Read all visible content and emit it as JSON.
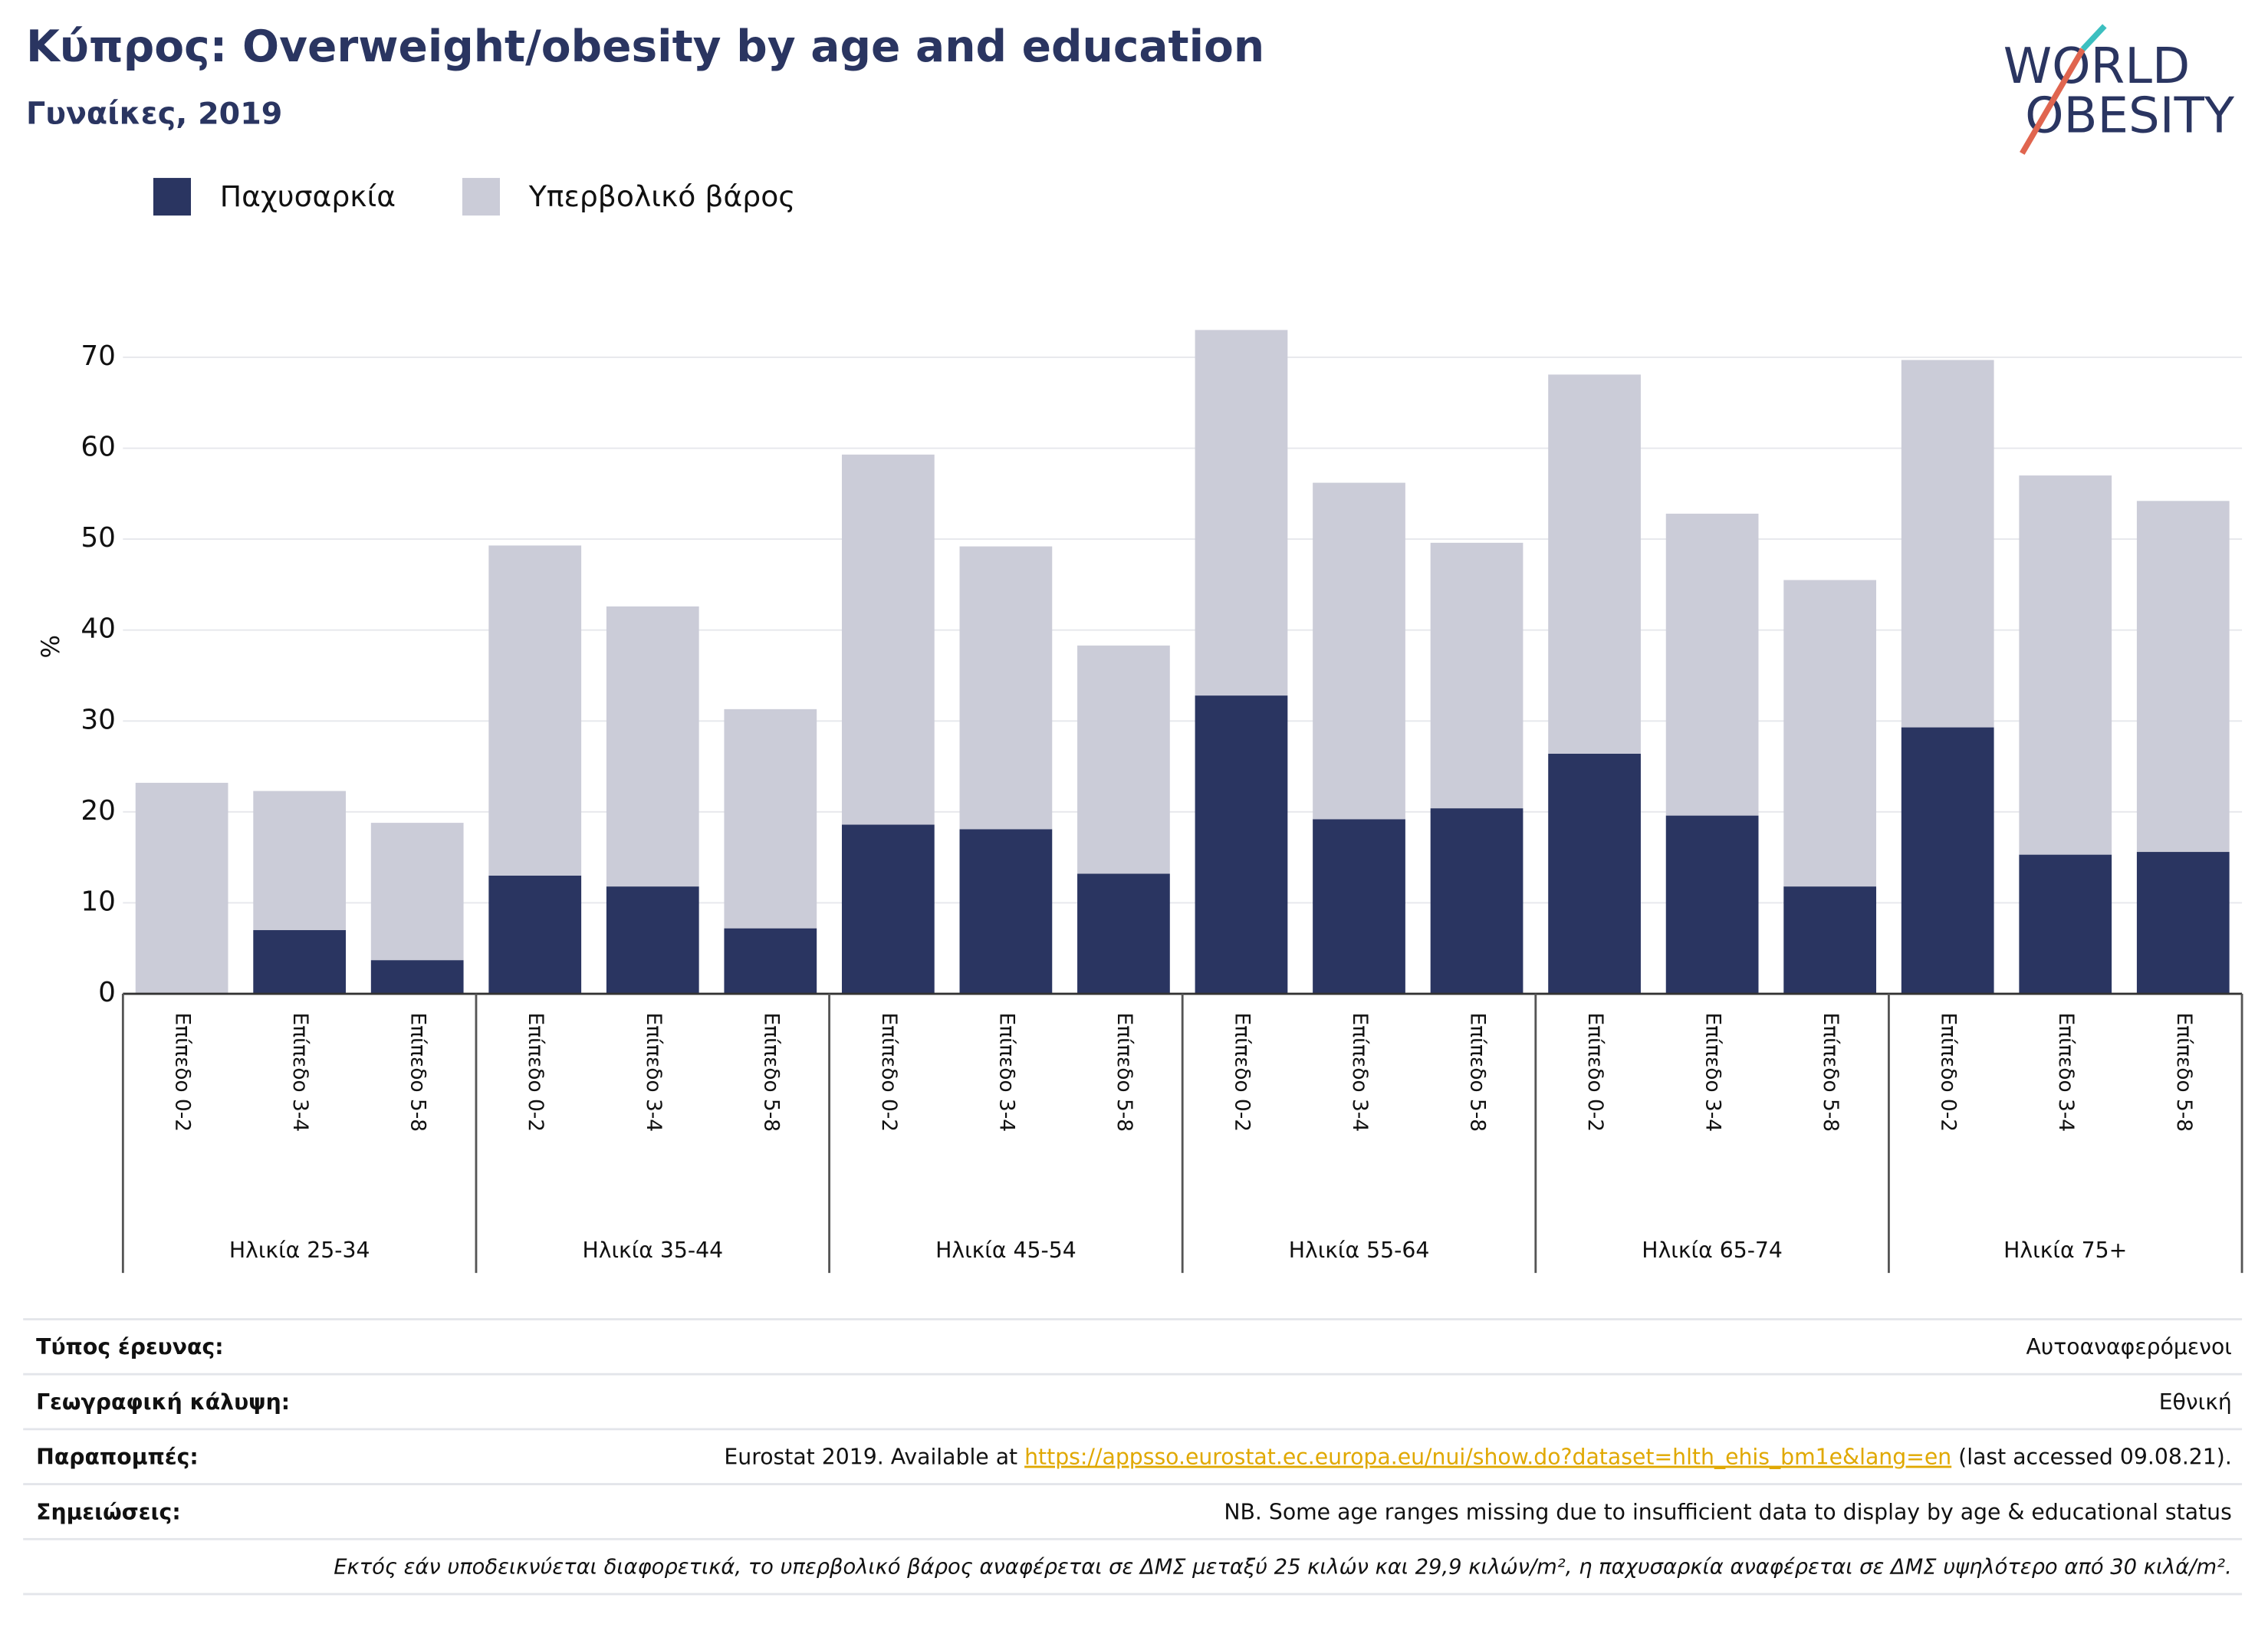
{
  "chart_data": {
    "type": "stacked_bar",
    "title": "Κύπρος: Overweight/obesity by age and education",
    "subtitle": "Γυναίκες, 2019",
    "y_label": "%",
    "categories": [
      "Επίπεδο 0-2",
      "Επίπεδο 3-4",
      "Επίπεδο 5-8",
      "Επίπεδο 0-2",
      "Επίπεδο 3-4",
      "Επίπεδο 5-8",
      "Επίπεδο 0-2",
      "Επίπεδο 3-4",
      "Επίπεδο 5-8",
      "Επίπεδο 0-2",
      "Επίπεδο 3-4",
      "Επίπεδο 5-8",
      "Επίπεδο 0-2",
      "Επίπεδο 3-4",
      "Επίπεδο 5-8",
      "Επίπεδο 0-2",
      "Επίπεδο 3-4",
      "Επίπεδο 5-8"
    ],
    "groups": [
      "Ηλικία 25-34",
      "Ηλικία 35-44",
      "Ηλικία 45-54",
      "Ηλικία 55-64",
      "Ηλικία 65-74",
      "Ηλικία 75+"
    ],
    "series": [
      {
        "name": "Παχυσαρκία",
        "color": "#2a3561",
        "values": [
          0,
          7.0,
          3.7,
          13.0,
          11.8,
          7.2,
          18.6,
          18.1,
          13.2,
          32.8,
          19.2,
          20.4,
          26.4,
          19.6,
          11.8,
          29.3,
          15.3,
          15.6
        ]
      },
      {
        "name": "Υπερβολικό βάρος",
        "color": "#cbccd8",
        "values": [
          23.2,
          15.3,
          15.1,
          36.3,
          30.8,
          24.1,
          40.7,
          31.1,
          25.1,
          40.2,
          37.0,
          29.2,
          41.7,
          33.2,
          33.7,
          40.4,
          41.7,
          38.6
        ]
      }
    ],
    "ylim": [
      0,
      75
    ],
    "yticks": [
      0,
      10,
      20,
      30,
      40,
      50,
      60,
      70
    ],
    "grid": true,
    "legend": "top-left"
  },
  "logo": {
    "line1": "WORLD",
    "line2": "OBESITY"
  },
  "footer": {
    "rows": [
      {
        "label": "Τύπος έρευνας:",
        "value": "Αυτοαναφερόμενοι"
      },
      {
        "label": "Γεωγραφική κάλυψη:",
        "value": "Εθνική"
      },
      {
        "label": "Παραπομπές:",
        "value_before": "Eurostat 2019. Available at ",
        "link": "https://appsso.eurostat.ec.europa.eu/nui/show.do?dataset=hlth_ehis_bm1e&lang=en",
        "value_after": " (last accessed 09.08.21)."
      },
      {
        "label": "Σημειώσεις:",
        "value": "NB. Some age ranges missing due to insufficient data to display by age & educational status"
      }
    ],
    "note": "Εκτός εάν υποδεικνύεται διαφορετικά, το υπερβολικό βάρος αναφέρεται σε ΔΜΣ μεταξύ 25 κιλών και 29,9 κιλών/m², η παχυσαρκία αναφέρεται σε ΔΜΣ υψηλότερο από 30 κιλά/m²."
  }
}
